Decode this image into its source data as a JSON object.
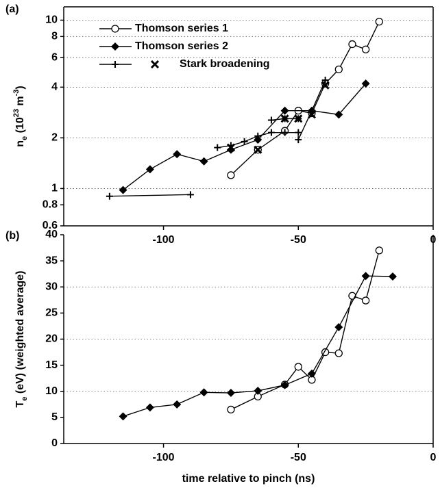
{
  "chart_data": [
    {
      "type": "line",
      "panel_label": "(a)",
      "log_y": true,
      "ylabel": [
        "n",
        "e",
        " (10",
        "23",
        " m",
        "-3",
        ")"
      ],
      "xlim": [
        -137,
        0
      ],
      "xticks": [
        -100,
        -50,
        0
      ],
      "ylim": [
        0.6,
        12
      ],
      "yticks": [
        0.6,
        0.8,
        1,
        2,
        4,
        6,
        8,
        10
      ],
      "ygrid": [
        1,
        2,
        4,
        6,
        8,
        10
      ],
      "series": [
        {
          "name": "Thomson series   1",
          "color": "#000000",
          "marker": "circle",
          "line": true,
          "x": [
            -75,
            -65,
            -55,
            -50,
            -45,
            -40,
            -35,
            -30,
            -25,
            -20
          ],
          "values": [
            1.2,
            1.7,
            2.2,
            2.9,
            2.8,
            4.2,
            5.1,
            7.2,
            6.7,
            9.8
          ]
        },
        {
          "name": "Thomson series   2",
          "color": "#000000",
          "marker": "diamond",
          "line": true,
          "x": [
            -115,
            -105,
            -95,
            -85,
            -75,
            -65,
            -55,
            -45,
            -35,
            -25
          ],
          "values": [
            0.98,
            1.3,
            1.6,
            1.45,
            1.7,
            1.95,
            2.9,
            2.9,
            2.75,
            4.2
          ]
        },
        {
          "name": "Stark broadening",
          "color": "#000000",
          "marker": "plus",
          "line": true,
          "x": [
            -120,
            -90,
            null,
            -80,
            -75,
            -70,
            -65,
            -60,
            -55,
            -50,
            null,
            -60,
            -55,
            -50,
            null,
            -50,
            -45,
            -40
          ],
          "values": [
            0.9,
            0.92,
            null,
            1.75,
            1.8,
            1.9,
            2.05,
            2.15,
            2.15,
            2.15,
            null,
            2.55,
            2.6,
            2.6,
            null,
            1.95,
            2.9,
            4.4
          ]
        },
        {
          "color": "#000000",
          "marker": "x",
          "line": false,
          "x": [
            -75,
            -65,
            -55,
            -50,
            -45,
            -40
          ],
          "values": [
            1.75,
            1.7,
            2.6,
            2.6,
            2.75,
            4.1
          ]
        }
      ]
    },
    {
      "type": "line",
      "panel_label": "(b)",
      "log_y": false,
      "ylabel": [
        "T",
        "e",
        " (eV) (weighted average)"
      ],
      "xlabel": "time relative to pinch (ns)",
      "xlim": [
        -137,
        0
      ],
      "xticks": [
        -100,
        -50,
        0
      ],
      "ylim": [
        0,
        40
      ],
      "yticks": [
        0,
        5,
        10,
        15,
        20,
        25,
        30,
        35,
        40
      ],
      "ygrid": [
        10,
        20,
        30
      ],
      "series": [
        {
          "color": "#000000",
          "marker": "circle",
          "line": true,
          "x": [
            -75,
            -65,
            -55,
            -50,
            -45,
            -40,
            -35,
            -30,
            -25,
            -20
          ],
          "values": [
            6.5,
            9,
            11.3,
            14.7,
            12.2,
            17.5,
            17.3,
            28.3,
            27.4,
            37
          ]
        },
        {
          "color": "#000000",
          "marker": "diamond",
          "line": true,
          "x": [
            -115,
            -105,
            -95,
            -85,
            -75,
            -65,
            -55,
            -45,
            -35,
            -25,
            -15
          ],
          "values": [
            5.2,
            6.9,
            7.5,
            9.8,
            9.7,
            10.1,
            11.2,
            13.4,
            22.3,
            32.1,
            32
          ]
        }
      ]
    }
  ]
}
